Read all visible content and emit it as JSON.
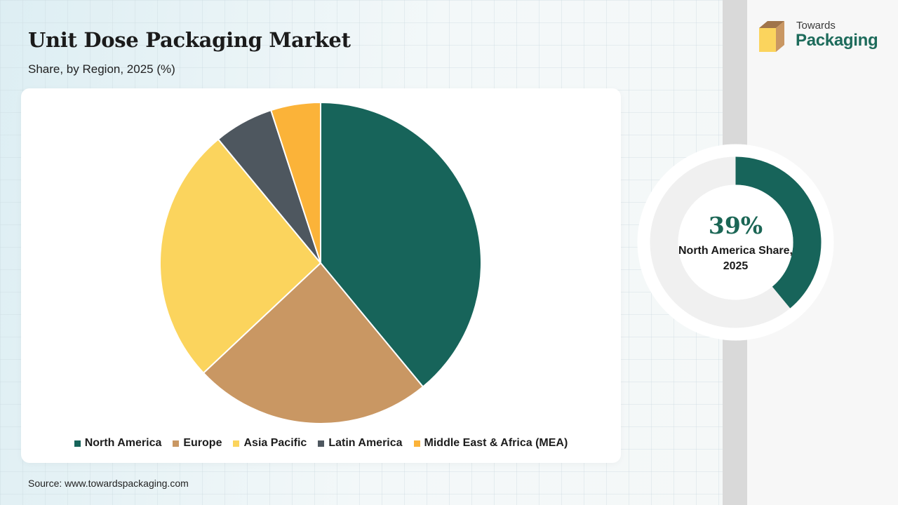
{
  "title": "Unit Dose Packaging Market",
  "subtitle": "Share, by Region, 2025 (%)",
  "source": "Source: www.towardspackaging.com",
  "logo": {
    "line1": "Towards",
    "line2": "Packaging",
    "color_brand": "#1d6b5b",
    "icon": "box-icon"
  },
  "chart_data": {
    "type": "pie",
    "title": "Unit Dose Packaging Market",
    "subtitle": "Share, by Region, 2025 (%)",
    "categories": [
      "North America",
      "Europe",
      "Asia Pacific",
      "Latin America",
      "Middle East & Africa (MEA)"
    ],
    "values": [
      39,
      24,
      26,
      6,
      5
    ],
    "colors": [
      "#17645a",
      "#c99763",
      "#fbd45d",
      "#4e575f",
      "#fbb339"
    ],
    "start_angle": "12 o'clock",
    "direction": "clockwise",
    "legend_position": "bottom"
  },
  "highlight": {
    "value": "39%",
    "label": "North America Share, 2025",
    "fraction": 0.39,
    "color": "#17645a",
    "track_color": "#f0f0f0"
  }
}
